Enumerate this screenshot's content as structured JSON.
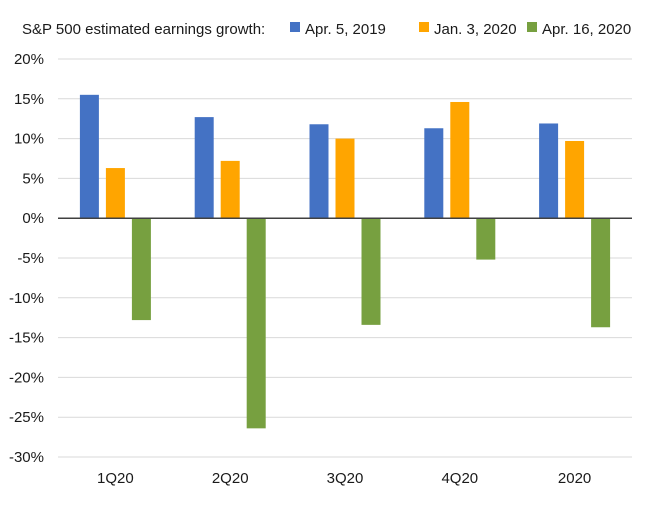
{
  "chart_data": {
    "type": "bar",
    "title": "S&P 500 estimated earnings growth:",
    "categories": [
      "1Q20",
      "2Q20",
      "3Q20",
      "4Q20",
      "2020"
    ],
    "series": [
      {
        "name": "Apr. 5, 2019",
        "color": "#4472c4",
        "values": [
          15.5,
          12.7,
          11.8,
          11.3,
          11.9
        ]
      },
      {
        "name": "Jan. 3, 2020",
        "color": "#ffa500",
        "values": [
          6.3,
          7.2,
          10.0,
          14.6,
          9.7
        ]
      },
      {
        "name": "Apr. 16, 2020",
        "color": "#77a040",
        "values": [
          -12.8,
          -26.4,
          -13.4,
          -5.2,
          -13.7
        ]
      }
    ],
    "ylim": [
      -30,
      20
    ],
    "yticks": [
      20,
      15,
      10,
      5,
      0,
      -5,
      -10,
      -15,
      -20,
      -25,
      -30
    ],
    "ytick_labels": [
      "20%",
      "15%",
      "10%",
      "5%",
      "0%",
      "-5%",
      "-10%",
      "-15%",
      "-20%",
      "-25%",
      "-30%"
    ],
    "grid": true,
    "legend_position": "top"
  }
}
